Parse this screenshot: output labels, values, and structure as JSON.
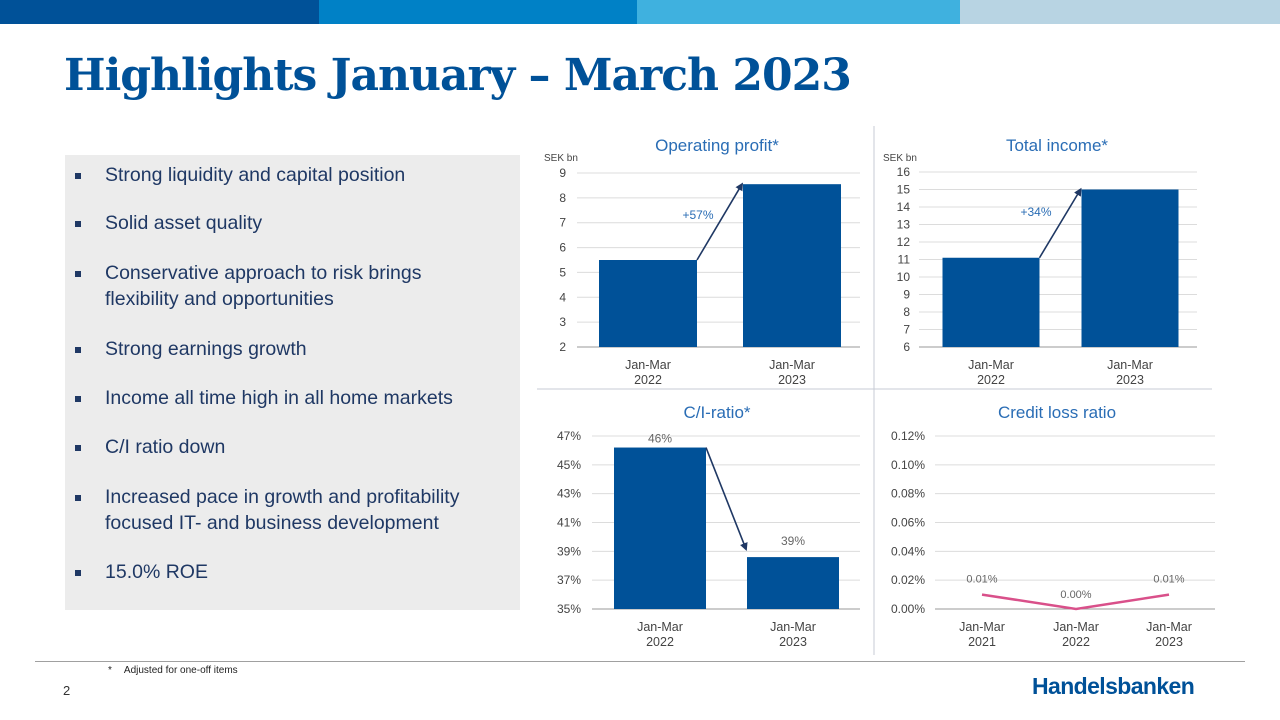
{
  "header": {
    "title": "Highlights January – March 2023"
  },
  "colors": {
    "brand": "#005198",
    "bar": "#005198",
    "accent_line": "#d9508a",
    "top_bar": [
      "#005198",
      "#0081c6",
      "#3fb1df",
      "#b8d4e3"
    ]
  },
  "highlights": [
    "Strong liquidity and capital position",
    "Solid asset quality",
    "Conservative approach to risk brings flexibility and opportunities",
    "Strong earnings growth",
    "Income all time high in all home markets",
    "C/I ratio down",
    "Increased pace in growth and profitability focused IT- and business development",
    "15.0% ROE"
  ],
  "chart_data": [
    {
      "id": "operating-profit",
      "type": "bar",
      "title": "Operating profit*",
      "unit_label": "SEK bn",
      "categories": [
        "Jan-Mar\n2022",
        "Jan-Mar\n2023"
      ],
      "values": [
        5.5,
        8.55
      ],
      "ylim": [
        2,
        9
      ],
      "yticks": [
        "2",
        "3",
        "4",
        "5",
        "6",
        "7",
        "8",
        "9"
      ],
      "ytick_values": [
        2,
        3,
        4,
        5,
        6,
        7,
        8,
        9
      ],
      "annotation": "+57%",
      "grid": true
    },
    {
      "id": "total-income",
      "type": "bar",
      "title": "Total income*",
      "unit_label": "SEK bn",
      "categories": [
        "Jan-Mar\n2022",
        "Jan-Mar\n2023"
      ],
      "values": [
        11.1,
        15.0
      ],
      "ylim": [
        6,
        16
      ],
      "yticks": [
        "6",
        "7",
        "8",
        "9",
        "10",
        "11",
        "12",
        "13",
        "14",
        "15",
        "16"
      ],
      "ytick_values": [
        6,
        7,
        8,
        9,
        10,
        11,
        12,
        13,
        14,
        15,
        16
      ],
      "annotation": "+34%",
      "grid": true
    },
    {
      "id": "ci-ratio",
      "type": "bar",
      "title": "C/I-ratio*",
      "categories": [
        "Jan-Mar\n2022",
        "Jan-Mar\n2023"
      ],
      "values": [
        46.2,
        38.6
      ],
      "data_labels": [
        "46%",
        "39%"
      ],
      "ylim": [
        35,
        47
      ],
      "yticks": [
        "35%",
        "37%",
        "39%",
        "41%",
        "43%",
        "45%",
        "47%"
      ],
      "ytick_values": [
        35,
        37,
        39,
        41,
        43,
        45,
        47
      ],
      "grid": true
    },
    {
      "id": "credit-loss-ratio",
      "type": "line",
      "title": "Credit loss ratio",
      "categories": [
        "Jan-Mar\n2021",
        "Jan-Mar\n2022",
        "Jan-Mar\n2023"
      ],
      "values": [
        0.01,
        0.0,
        0.01
      ],
      "data_labels": [
        "0.01%",
        "0.00%",
        "0.01%"
      ],
      "ylim": [
        0,
        0.12
      ],
      "yticks": [
        "0.00%",
        "0.02%",
        "0.04%",
        "0.06%",
        "0.08%",
        "0.10%",
        "0.12%"
      ],
      "ytick_values": [
        0,
        0.02,
        0.04,
        0.06,
        0.08,
        0.1,
        0.12
      ],
      "grid": true
    }
  ],
  "footer": {
    "footnote_mark": "*",
    "footnote": "Adjusted for one-off items",
    "page_number": "2",
    "brand_name": "Handelsbanken"
  }
}
